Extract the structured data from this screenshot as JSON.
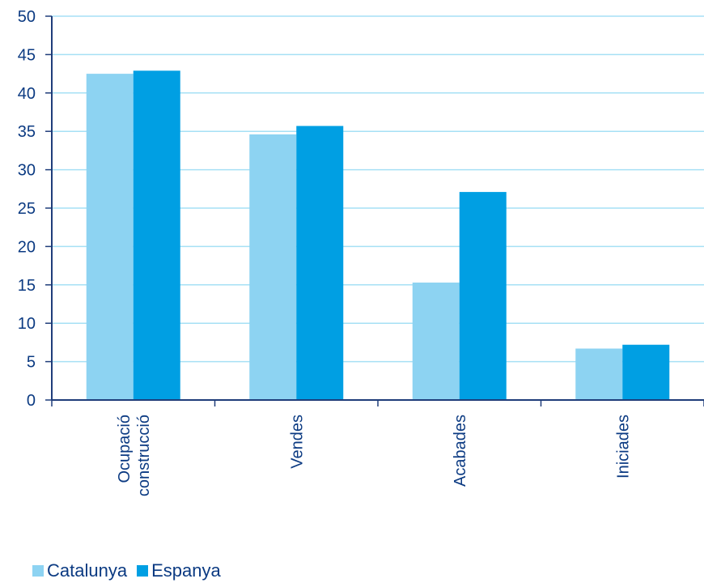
{
  "chart_data": {
    "type": "bar",
    "categories": [
      [
        "Ocupació",
        "construcció"
      ],
      [
        "Vendes"
      ],
      [
        "Acabades"
      ],
      [
        "Iniciades"
      ]
    ],
    "series": [
      {
        "name": "Catalunya",
        "values": [
          42.5,
          34.6,
          15.3,
          6.7
        ],
        "color": "#8dd3f2"
      },
      {
        "name": "Espanya",
        "values": [
          42.9,
          35.7,
          27.1,
          7.2
        ],
        "color": "#009fe3"
      }
    ],
    "yticks": [
      "0",
      "5",
      "10",
      "15",
      "20",
      "25",
      "30",
      "35",
      "40",
      "45",
      "50"
    ],
    "ylim": [
      0,
      50
    ],
    "grid": true,
    "legend_position": "bottom-left",
    "colors": {
      "axis": "#1f3d7a",
      "grid": "#a6e0f5",
      "text": "#0b3a82"
    }
  }
}
